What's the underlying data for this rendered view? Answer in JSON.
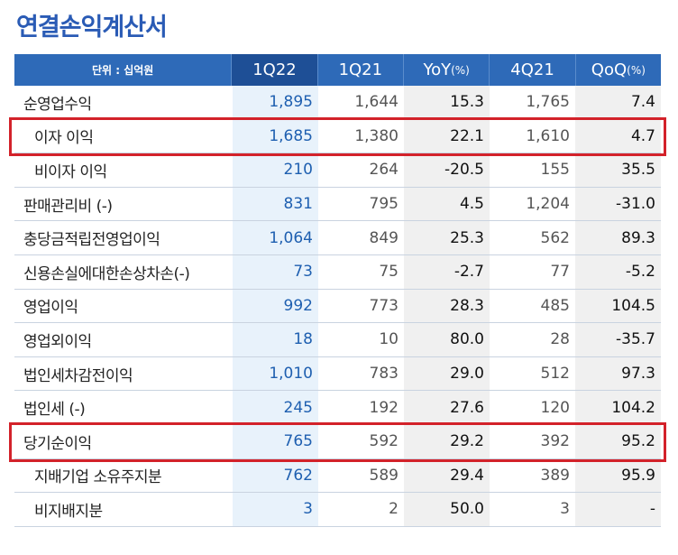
{
  "title": "연결손익계산서",
  "header": {
    "unit": "단위 : 십억원",
    "columns": [
      {
        "main": "1Q22",
        "sub": ""
      },
      {
        "main": "1Q21",
        "sub": ""
      },
      {
        "main": "YoY",
        "sub": "(%)"
      },
      {
        "main": "4Q21",
        "sub": ""
      },
      {
        "main": "QoQ",
        "sub": "(%)"
      }
    ]
  },
  "rows": [
    {
      "label": "순영업수익",
      "indent": false,
      "values": [
        "1,895",
        "1,644",
        "15.3",
        "1,765",
        "7.4"
      ]
    },
    {
      "label": "이자 이익",
      "indent": true,
      "values": [
        "1,685",
        "1,380",
        "22.1",
        "1,610",
        "4.7"
      ]
    },
    {
      "label": "비이자 이익",
      "indent": true,
      "values": [
        "210",
        "264",
        "-20.5",
        "155",
        "35.5"
      ]
    },
    {
      "label": "판매관리비 (-)",
      "indent": false,
      "values": [
        "831",
        "795",
        "4.5",
        "1,204",
        "-31.0"
      ]
    },
    {
      "label": "충당금적립전영업이익",
      "indent": false,
      "values": [
        "1,064",
        "849",
        "25.3",
        "562",
        "89.3"
      ]
    },
    {
      "label": "신용손실에대한손상차손(-)",
      "indent": false,
      "values": [
        "73",
        "75",
        "-2.7",
        "77",
        "-5.2"
      ]
    },
    {
      "label": "영업이익",
      "indent": false,
      "values": [
        "992",
        "773",
        "28.3",
        "485",
        "104.5"
      ]
    },
    {
      "label": "영업외이익",
      "indent": false,
      "values": [
        "18",
        "10",
        "80.0",
        "28",
        "-35.7"
      ]
    },
    {
      "label": "법인세차감전이익",
      "indent": false,
      "values": [
        "1,010",
        "783",
        "29.0",
        "512",
        "97.3"
      ]
    },
    {
      "label": "법인세 (-)",
      "indent": false,
      "values": [
        "245",
        "192",
        "27.6",
        "120",
        "104.2"
      ]
    },
    {
      "label": "당기순이익",
      "indent": false,
      "values": [
        "765",
        "592",
        "29.2",
        "392",
        "95.2"
      ]
    },
    {
      "label": "지배기업 소유주지분",
      "indent": true,
      "values": [
        "762",
        "589",
        "29.4",
        "389",
        "95.9"
      ]
    },
    {
      "label": "비지배지분",
      "indent": true,
      "values": [
        "3",
        "2",
        "50.0",
        "3",
        "-"
      ]
    }
  ],
  "highlighted_rows": [
    "이자 이익",
    "당기순이익"
  ],
  "colors": {
    "title": "#2a5bb5",
    "header_bg": "#2e6ab8",
    "current_quarter_header_bg": "#1e4f96",
    "current_quarter_cell_bg": "#e8f2fb",
    "change_cell_bg": "#f0f0f0",
    "highlight_border": "#d3222a"
  }
}
